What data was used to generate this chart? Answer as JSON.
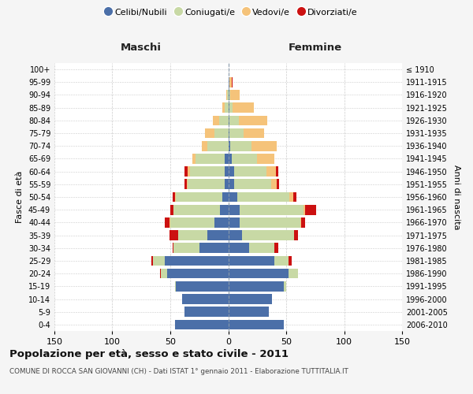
{
  "age_groups": [
    "0-4",
    "5-9",
    "10-14",
    "15-19",
    "20-24",
    "25-29",
    "30-34",
    "35-39",
    "40-44",
    "45-49",
    "50-54",
    "55-59",
    "60-64",
    "65-69",
    "70-74",
    "75-79",
    "80-84",
    "85-89",
    "90-94",
    "95-99",
    "100+"
  ],
  "birth_years": [
    "2006-2010",
    "2001-2005",
    "1996-2000",
    "1991-1995",
    "1986-1990",
    "1981-1985",
    "1976-1980",
    "1971-1975",
    "1966-1970",
    "1961-1965",
    "1956-1960",
    "1951-1955",
    "1946-1950",
    "1941-1945",
    "1936-1940",
    "1931-1935",
    "1926-1930",
    "1921-1925",
    "1916-1920",
    "1911-1915",
    "≤ 1910"
  ],
  "maschi": {
    "celibi": [
      46,
      38,
      40,
      45,
      53,
      55,
      25,
      18,
      12,
      7,
      5,
      3,
      3,
      3,
      0,
      0,
      0,
      0,
      0,
      0,
      0
    ],
    "coniugati": [
      0,
      0,
      0,
      1,
      5,
      10,
      22,
      25,
      38,
      40,
      40,
      32,
      30,
      25,
      18,
      12,
      8,
      3,
      1,
      0,
      0
    ],
    "vedovi": [
      0,
      0,
      0,
      0,
      0,
      0,
      0,
      0,
      1,
      0,
      1,
      1,
      2,
      3,
      5,
      8,
      5,
      2,
      1,
      0,
      0
    ],
    "divorziati": [
      0,
      0,
      0,
      0,
      1,
      1,
      1,
      8,
      4,
      3,
      2,
      2,
      3,
      0,
      0,
      0,
      0,
      0,
      0,
      0,
      0
    ]
  },
  "femmine": {
    "nubili": [
      48,
      35,
      38,
      48,
      52,
      40,
      18,
      12,
      10,
      10,
      8,
      5,
      5,
      3,
      2,
      1,
      1,
      1,
      1,
      1,
      0
    ],
    "coniugate": [
      0,
      0,
      0,
      2,
      8,
      12,
      22,
      45,
      52,
      55,
      45,
      32,
      28,
      22,
      18,
      12,
      8,
      3,
      1,
      0,
      0
    ],
    "vedove": [
      0,
      0,
      0,
      0,
      0,
      0,
      0,
      0,
      1,
      1,
      3,
      5,
      8,
      15,
      22,
      18,
      25,
      18,
      8,
      2,
      0
    ],
    "divorziate": [
      0,
      0,
      0,
      0,
      0,
      3,
      3,
      3,
      3,
      10,
      3,
      2,
      2,
      0,
      0,
      0,
      0,
      0,
      0,
      1,
      0
    ]
  },
  "colors": {
    "celibi_nubili": "#4b6fa8",
    "coniugati": "#c8d9a5",
    "vedovi": "#f5c37a",
    "divorziati": "#cc1111"
  },
  "title": "Popolazione per età, sesso e stato civile - 2011",
  "subtitle": "COMUNE DI ROCCA SAN GIOVANNI (CH) - Dati ISTAT 1° gennaio 2011 - Elaborazione TUTTITALIA.IT",
  "xlabel_left": "Maschi",
  "xlabel_right": "Femmine",
  "ylabel_left": "Fasce di età",
  "ylabel_right": "Anni di nascita",
  "xlim": 150,
  "legend_labels": [
    "Celibi/Nubili",
    "Coniugati/e",
    "Vedovi/e",
    "Divorziati/e"
  ],
  "bg_color": "#f5f5f5",
  "plot_bg": "#ffffff",
  "grid_color": "#cccccc"
}
